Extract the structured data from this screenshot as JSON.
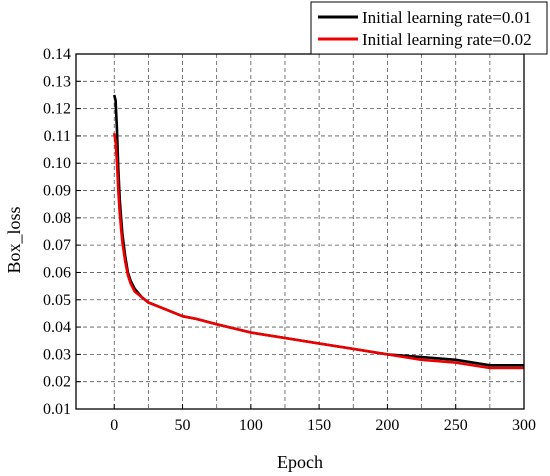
{
  "chart_data": {
    "type": "line",
    "xlabel": "Epoch",
    "ylabel": "Box_loss",
    "xlim": [
      -28,
      300
    ],
    "ylim": [
      0.01,
      0.14
    ],
    "xticks": [
      0,
      50,
      100,
      150,
      200,
      250,
      300
    ],
    "yticks": [
      0.01,
      0.02,
      0.03,
      0.04,
      0.05,
      0.06,
      0.07,
      0.08,
      0.09,
      0.1,
      0.11,
      0.12,
      0.13,
      0.14
    ],
    "ytick_labels": [
      "0.01",
      "0.02",
      "0.03",
      "0.04",
      "0.05",
      "0.06",
      "0.07",
      "0.08",
      "0.09",
      "0.10",
      "0.11",
      "0.12",
      "0.13",
      "0.14"
    ],
    "grid": "dashed",
    "legend_position": "top-right",
    "series": [
      {
        "name": "Initial learning rate=0.01",
        "color": "#000000",
        "x": [
          0,
          1,
          2,
          3,
          4,
          5,
          6,
          8,
          10,
          12,
          15,
          20,
          25,
          30,
          40,
          50,
          60,
          75,
          100,
          125,
          150,
          175,
          200,
          225,
          250,
          275,
          300
        ],
        "y": [
          0.125,
          0.123,
          0.112,
          0.098,
          0.087,
          0.08,
          0.074,
          0.066,
          0.06,
          0.057,
          0.054,
          0.051,
          0.049,
          0.048,
          0.046,
          0.044,
          0.043,
          0.041,
          0.038,
          0.036,
          0.034,
          0.032,
          0.03,
          0.029,
          0.028,
          0.026,
          0.026
        ]
      },
      {
        "name": "Initial learning rate=0.02",
        "color": "#ee0000",
        "x": [
          0,
          1,
          2,
          3,
          4,
          5,
          6,
          8,
          10,
          12,
          15,
          20,
          25,
          30,
          40,
          50,
          60,
          75,
          100,
          125,
          150,
          175,
          200,
          225,
          250,
          275,
          300
        ],
        "y": [
          0.111,
          0.108,
          0.1,
          0.09,
          0.082,
          0.076,
          0.071,
          0.064,
          0.059,
          0.056,
          0.053,
          0.051,
          0.049,
          0.048,
          0.046,
          0.044,
          0.043,
          0.041,
          0.038,
          0.036,
          0.034,
          0.032,
          0.03,
          0.028,
          0.027,
          0.025,
          0.025
        ]
      }
    ]
  }
}
